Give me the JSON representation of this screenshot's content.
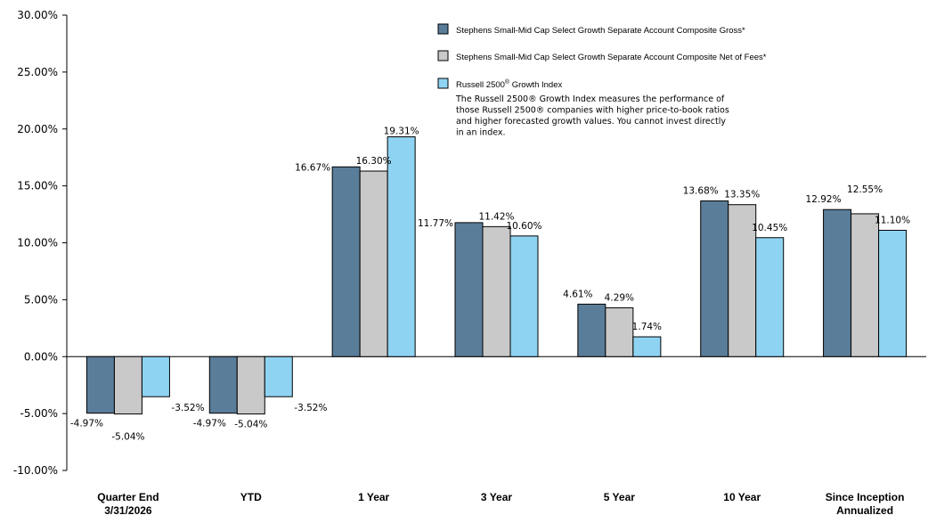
{
  "chart_data": {
    "type": "bar",
    "categories": [
      [
        "Quarter End",
        "3/31/2026"
      ],
      [
        "YTD"
      ],
      [
        "1 Year"
      ],
      [
        "3 Year"
      ],
      [
        "5 Year"
      ],
      [
        "10 Year"
      ],
      [
        "Since Inception",
        "Annualized"
      ]
    ],
    "series": [
      {
        "name": "Stephens Small-Mid Cap Select Growth Separate Account Composite Gross*",
        "color": "#5a7d99",
        "values": [
          -4.97,
          -4.97,
          16.67,
          11.77,
          4.61,
          13.68,
          12.92
        ],
        "labels": [
          "-4.97%",
          "-4.97%",
          "16.67%",
          "11.77%",
          "4.61%",
          "13.68%",
          "12.92%"
        ]
      },
      {
        "name": "Stephens Small-Mid Cap Select Growth Separate Account Composite Net of Fees*",
        "color": "#c9c9c9",
        "values": [
          -5.04,
          -5.04,
          16.3,
          11.42,
          4.29,
          13.35,
          12.55
        ],
        "labels": [
          "-5.04%",
          "-5.04%",
          "16.30%",
          "11.42%",
          "4.29%",
          "13.35%",
          "12.55%"
        ]
      },
      {
        "name_main": "Russell 2500",
        "name_sup": "®",
        "name_rest": " Growth Index",
        "color": "#8fd3f2",
        "values": [
          -3.52,
          -3.52,
          19.31,
          10.6,
          1.74,
          10.45,
          11.1
        ],
        "labels": [
          "-3.52%",
          "-3.52%",
          "19.31%",
          "10.60%",
          "1.74%",
          "10.45%",
          "11.10%"
        ]
      }
    ],
    "yticks": [
      "30.00%",
      "25.00%",
      "20.00%",
      "15.00%",
      "10.00%",
      "5.00%",
      "0.00%",
      "-5.00%",
      "-10.00%"
    ],
    "ylim": [
      -10,
      30
    ],
    "index_note": [
      "The Russell 2500® Growth Index measures the performance of",
      "those Russell 2500® companies with higher price-to-book ratios",
      "and higher forecasted growth values. You cannot invest directly",
      "in an index."
    ],
    "legend_position": "top-right",
    "grid": false
  }
}
